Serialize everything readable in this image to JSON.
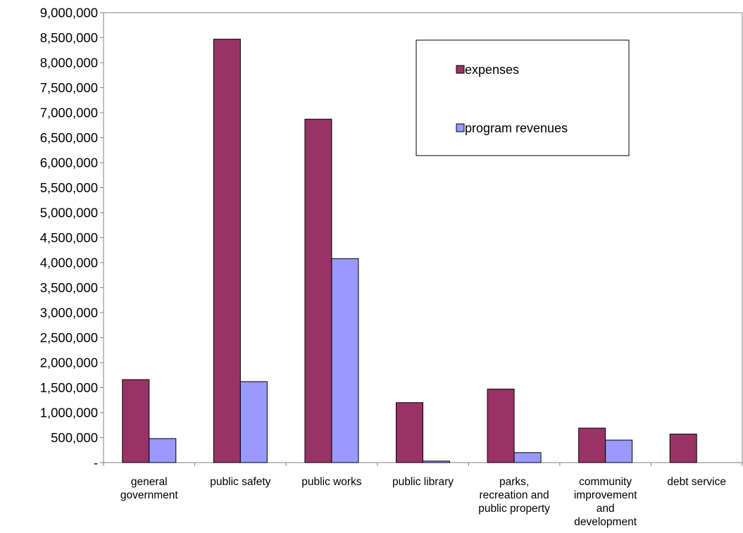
{
  "chart_data": {
    "type": "bar",
    "title": "",
    "xlabel": "",
    "ylabel": "",
    "ylim": [
      0,
      9000000
    ],
    "y_ticks": [
      {
        "value": 0,
        "label": "-"
      },
      {
        "value": 500000,
        "label": "500,000"
      },
      {
        "value": 1000000,
        "label": "1,000,000"
      },
      {
        "value": 1500000,
        "label": "1,500,000"
      },
      {
        "value": 2000000,
        "label": "2,000,000"
      },
      {
        "value": 2500000,
        "label": "2,500,000"
      },
      {
        "value": 3000000,
        "label": "3,000,000"
      },
      {
        "value": 3500000,
        "label": "3,500,000"
      },
      {
        "value": 4000000,
        "label": "4,000,000"
      },
      {
        "value": 4500000,
        "label": "4,500,000"
      },
      {
        "value": 5000000,
        "label": "5,000,000"
      },
      {
        "value": 5500000,
        "label": "5,500,000"
      },
      {
        "value": 6000000,
        "label": "6,000,000"
      },
      {
        "value": 6500000,
        "label": "6,500,000"
      },
      {
        "value": 7000000,
        "label": "7,000,000"
      },
      {
        "value": 7500000,
        "label": "7,500,000"
      },
      {
        "value": 8000000,
        "label": "8,000,000"
      },
      {
        "value": 8500000,
        "label": "8,500,000"
      },
      {
        "value": 9000000,
        "label": "9,000,000"
      }
    ],
    "categories": [
      [
        "general",
        "government"
      ],
      [
        "public safety"
      ],
      [
        "public works"
      ],
      [
        "public library"
      ],
      [
        "parks,",
        "recreation and",
        "public property"
      ],
      [
        "community",
        "improvement",
        "and",
        "development"
      ],
      [
        "debt service"
      ]
    ],
    "series": [
      {
        "name": "expenses",
        "color": "#993366",
        "values": [
          1660000,
          8470000,
          6870000,
          1200000,
          1470000,
          690000,
          570000
        ]
      },
      {
        "name": "program revenues",
        "color": "#9999ff",
        "values": [
          480000,
          1620000,
          4080000,
          30000,
          200000,
          450000,
          0
        ]
      }
    ],
    "legend_position": "top-right",
    "grid": false
  }
}
